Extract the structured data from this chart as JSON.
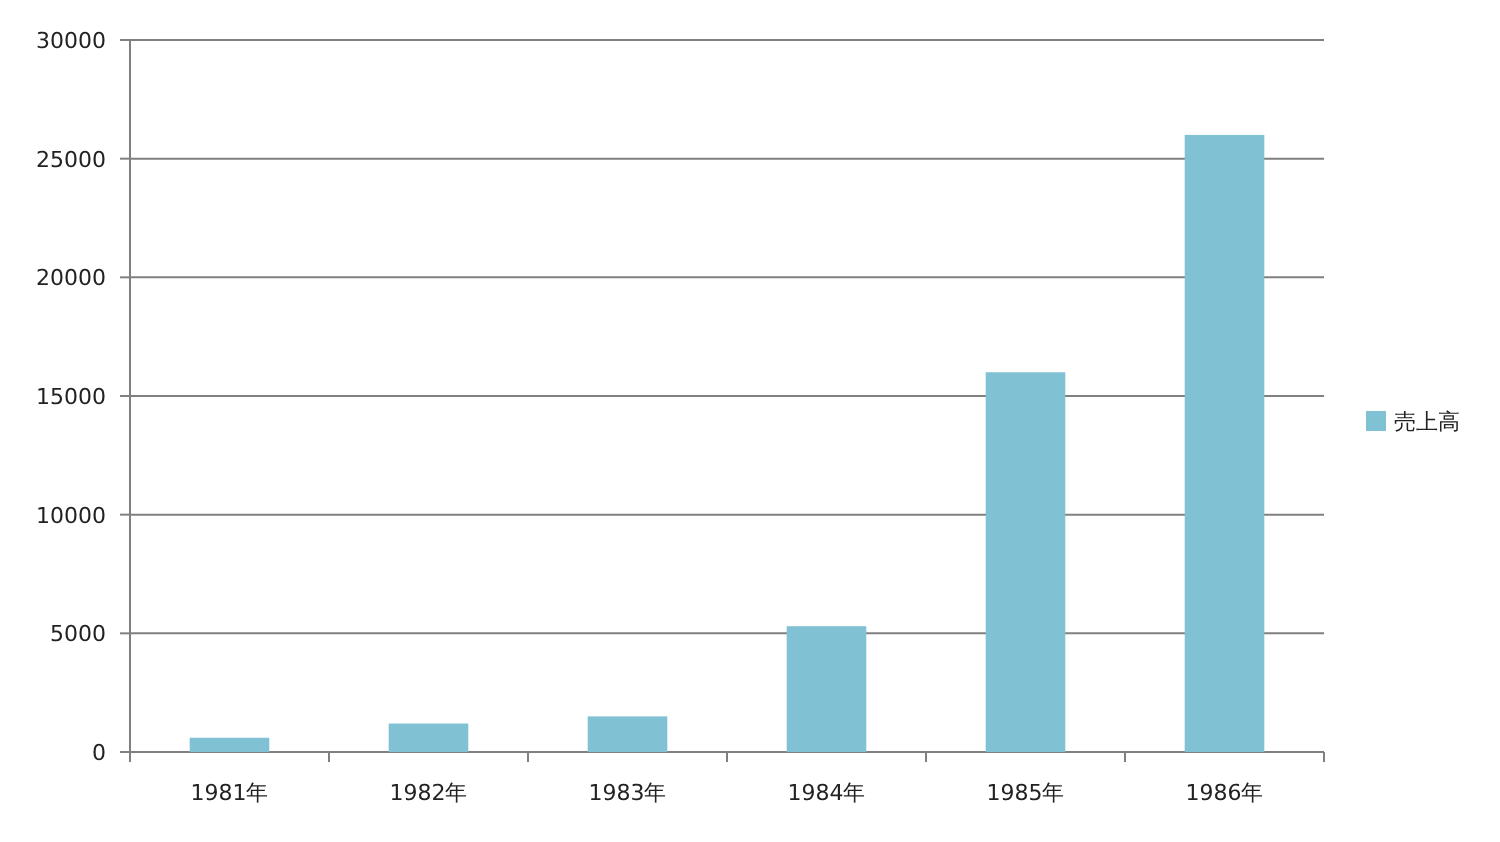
{
  "chart_data": {
    "type": "bar",
    "categories": [
      "1981年",
      "1982年",
      "1983年",
      "1984年",
      "1985年",
      "1986年"
    ],
    "series": [
      {
        "name": "売上高",
        "color": "#80c1d4",
        "values": [
          600,
          1200,
          1500,
          5300,
          16000,
          26000
        ]
      }
    ],
    "ylim": [
      0,
      30000
    ],
    "yticks": [
      0,
      5000,
      10000,
      15000,
      20000,
      25000,
      30000
    ],
    "grid": "y",
    "legend": "right"
  }
}
